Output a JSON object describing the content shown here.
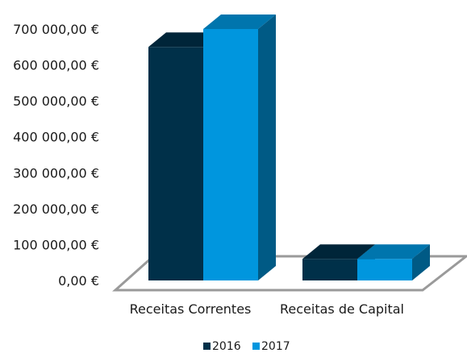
{
  "chart_data": {
    "type": "bar",
    "title": "",
    "xlabel": "",
    "ylabel": "",
    "categories": [
      "Receitas Correntes",
      "Receitas de Capital"
    ],
    "series": [
      {
        "name": "2016",
        "values": [
          650000,
          60000
        ],
        "color": "#003049"
      },
      {
        "name": "2017",
        "values": [
          700000,
          60000
        ],
        "color": "#0096de"
      }
    ],
    "ylim": [
      0,
      700000
    ],
    "yticks": [
      0,
      100000,
      200000,
      300000,
      400000,
      500000,
      600000,
      700000
    ],
    "ytick_labels": [
      "0,00 €",
      "100 000,00 €",
      "200 000,00 €",
      "300 000,00 €",
      "400 000,00 €",
      "500 000,00 €",
      "600 000,00 €",
      "700 000,00 €"
    ],
    "grid": false,
    "legend_position": "bottom",
    "style": "3d-column"
  }
}
